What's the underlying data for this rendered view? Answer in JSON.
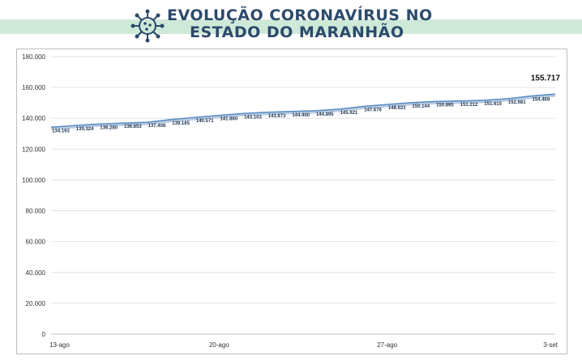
{
  "header": {
    "title_line1": "EVOLUÇÃO CORONAVÍRUS NO",
    "title_line2": "ESTADO DO MARANHÃO"
  },
  "colors": {
    "title": "#2c4a6b",
    "banner": "#cfe9d9",
    "line": "#5b8fc7",
    "line_shadow": "#9fb9d6"
  },
  "chart_data": {
    "type": "line",
    "title": "",
    "xlabel": "",
    "ylabel": "",
    "ylim": [
      0,
      180000
    ],
    "yticks": [
      0,
      20000,
      40000,
      60000,
      80000,
      100000,
      120000,
      140000,
      160000,
      180000
    ],
    "ytick_labels": [
      "0",
      "20.000",
      "40.000",
      "60.000",
      "80.000",
      "100.000",
      "120.000",
      "140.000",
      "160.000",
      "180.000"
    ],
    "grid": true,
    "x": [
      "13-ago",
      "14-ago",
      "15-ago",
      "16-ago",
      "17-ago",
      "18-ago",
      "19-ago",
      "20-ago",
      "21-ago",
      "22-ago",
      "23-ago",
      "24-ago",
      "25-ago",
      "26-ago",
      "27-ago",
      "28-ago",
      "29-ago",
      "30-ago",
      "31-ago",
      "1-set",
      "2-set",
      "3-set"
    ],
    "xtick_labels": [
      "13-ago",
      "20-ago",
      "27-ago",
      "3-set"
    ],
    "xtick_indices": [
      0,
      7,
      14,
      21
    ],
    "series": [
      {
        "values": [
          134193,
          135324,
          136280,
          136853,
          137408,
          139185,
          140571,
          141860,
          143103,
          143873,
          144400,
          144895,
          145921,
          147676,
          148923,
          150144,
          150895,
          151212,
          151615,
          152681,
          154468,
          155717
        ],
        "labels": [
          "134.193",
          "135.324",
          "136.280",
          "136.853",
          "137.408",
          "139.185",
          "140.571",
          "141.860",
          "143.103",
          "143.873",
          "144.400",
          "144.895",
          "145.921",
          "147.676",
          "148.923",
          "150.144",
          "150.895",
          "151.212",
          "151.615",
          "152.681",
          "154.468",
          "155.717"
        ]
      }
    ]
  }
}
